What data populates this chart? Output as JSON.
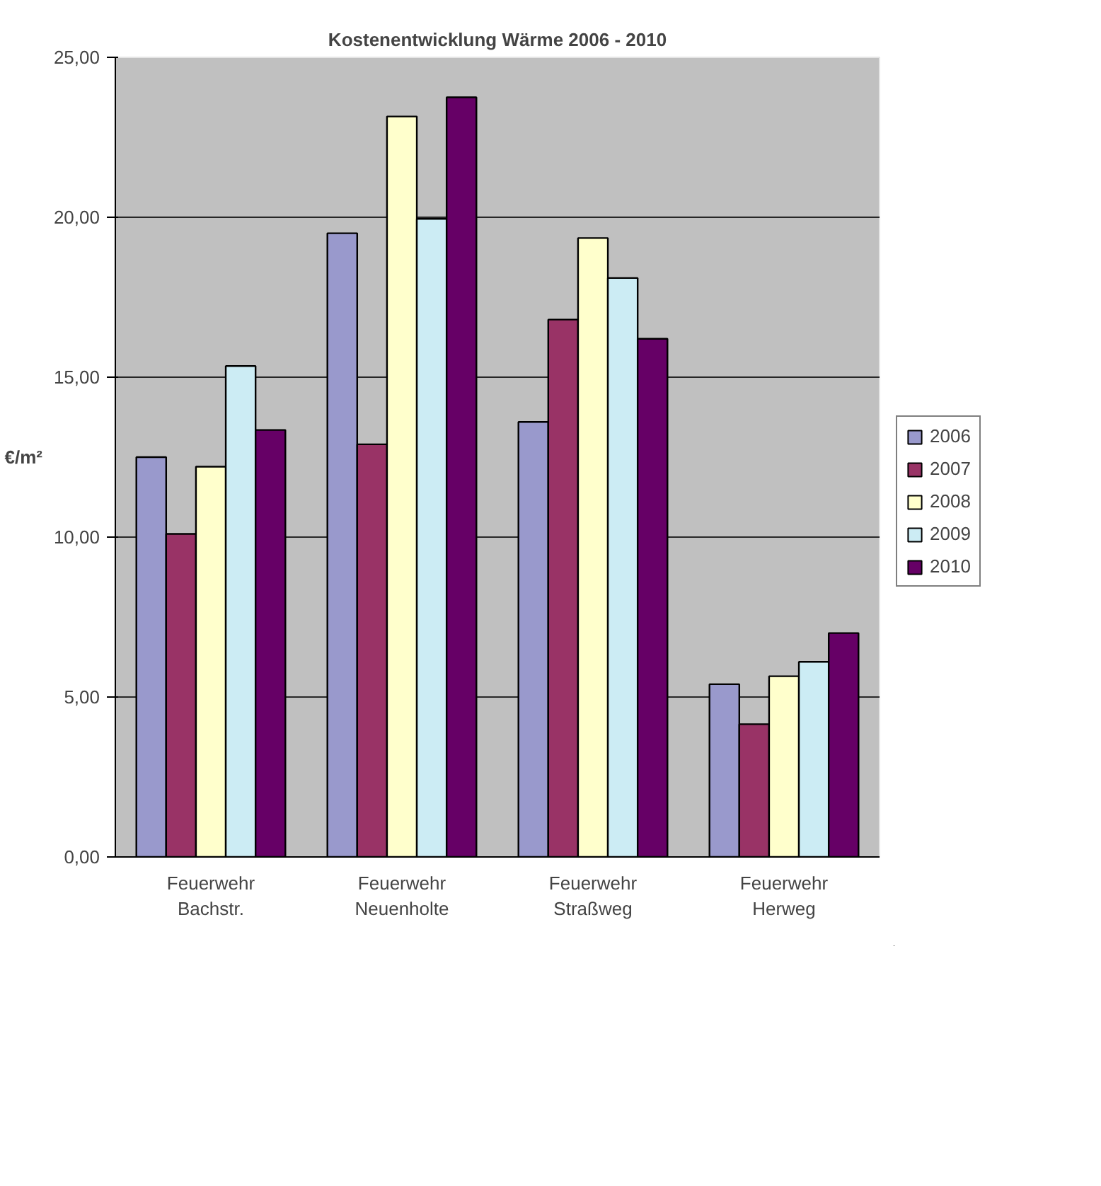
{
  "chart_data": {
    "type": "bar",
    "title": "Kostenentwicklung Wärme 2006 - 2010",
    "ylabel": "€/m²",
    "categories": [
      "Feuerwehr\nBachstr.",
      "Feuerwehr\nNeuenholte",
      "Feuerwehr\nStraßweg",
      "Feuerwehr\nHerweg"
    ],
    "series": [
      {
        "name": "2006",
        "color": "#9999cc",
        "values": [
          12.5,
          19.5,
          13.6,
          5.4
        ]
      },
      {
        "name": "2007",
        "color": "#993366",
        "values": [
          10.1,
          12.9,
          16.8,
          4.15
        ]
      },
      {
        "name": "2008",
        "color": "#ffffcc",
        "values": [
          12.2,
          23.15,
          19.35,
          5.65
        ]
      },
      {
        "name": "2009",
        "color": "#ccecf4",
        "values": [
          15.35,
          19.95,
          18.1,
          6.1
        ]
      },
      {
        "name": "2010",
        "color": "#660066",
        "values": [
          13.35,
          23.75,
          16.2,
          7.0
        ]
      }
    ],
    "ylim": [
      0,
      25
    ],
    "yticks": [
      {
        "value": 0,
        "label": "0,00"
      },
      {
        "value": 5,
        "label": "5,00"
      },
      {
        "value": 10,
        "label": "10,00"
      },
      {
        "value": 15,
        "label": "15,00"
      },
      {
        "value": 20,
        "label": "20,00"
      },
      {
        "value": 25,
        "label": "25,00"
      }
    ],
    "grid": "y",
    "legend": "right"
  }
}
